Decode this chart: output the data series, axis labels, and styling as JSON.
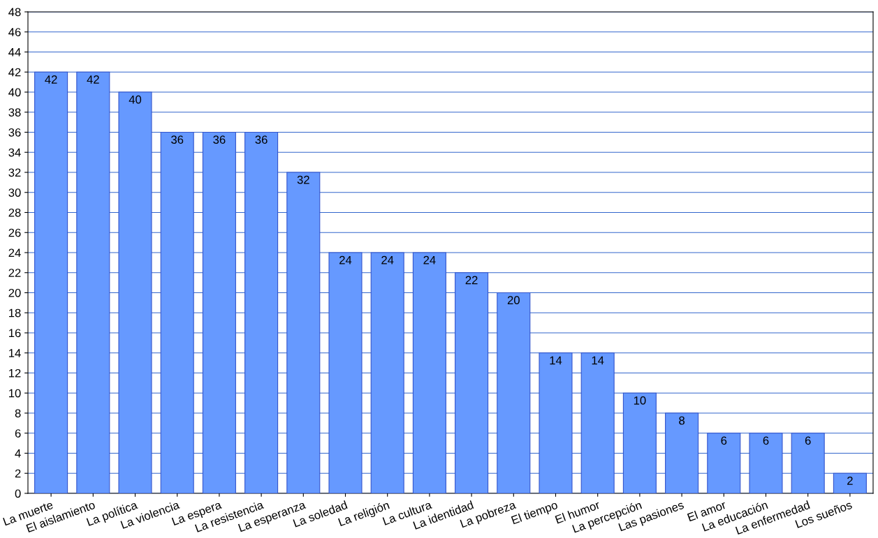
{
  "chart_data": {
    "type": "bar",
    "categories": [
      "La muerte",
      "El aislamiento",
      "La política",
      "La violencia",
      "La espera",
      "La resistencia",
      "La esperanza",
      "La soledad",
      "La religión",
      "La cultura",
      "La identidad",
      "La pobreza",
      "El tiempo",
      "El humor",
      "La percepción",
      "Las pasiones",
      "El amor",
      "La educación",
      "La enfermedad",
      "Los sueños"
    ],
    "values": [
      42,
      42,
      40,
      36,
      36,
      36,
      32,
      24,
      24,
      24,
      22,
      20,
      14,
      14,
      10,
      8,
      6,
      6,
      6,
      2
    ],
    "color": "#6699ff",
    "ylim": [
      0,
      48
    ],
    "yticks": [
      0,
      2,
      4,
      6,
      8,
      10,
      12,
      14,
      16,
      18,
      20,
      22,
      24,
      26,
      28,
      30,
      32,
      34,
      36,
      38,
      40,
      42,
      44,
      46,
      48
    ],
    "grid": "y",
    "data_labels": true
  }
}
